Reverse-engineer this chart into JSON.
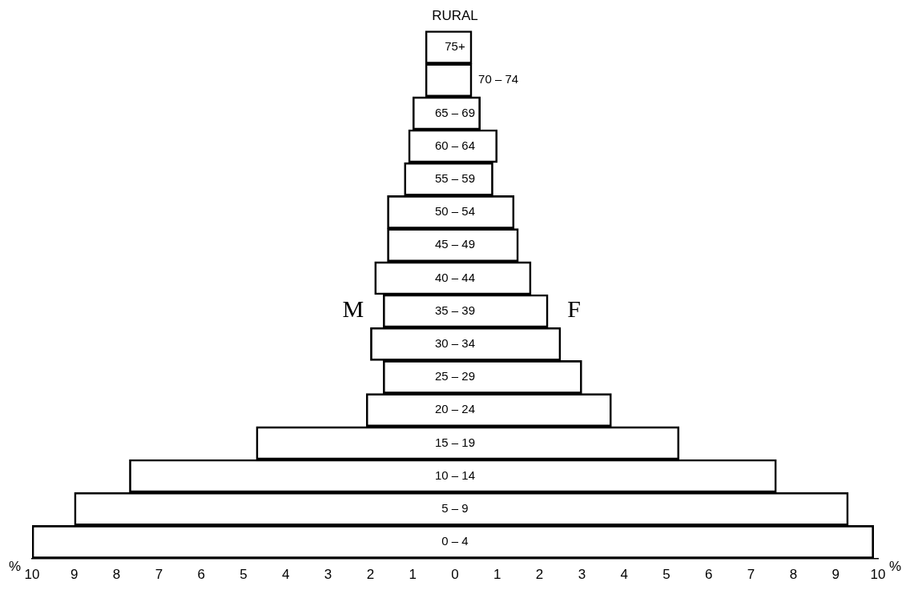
{
  "chart_data": {
    "type": "bar",
    "orientation": "horizontal",
    "stacked": true,
    "title": "RURAL",
    "xlabel": "%",
    "categories": [
      "75+",
      "70 – 74",
      "65 – 69",
      "60 – 64",
      "55 – 59",
      "50 – 54",
      "45 – 49",
      "40 – 44",
      "35 – 39",
      "30 – 34",
      "25 – 29",
      "20 – 24",
      "15 – 19",
      "10 – 14",
      "5 – 9",
      "0 – 4"
    ],
    "series": [
      {
        "name": "M",
        "color": "#000000",
        "values": [
          -0.7,
          -0.7,
          -1.0,
          -1.1,
          -1.2,
          -1.6,
          -1.6,
          -1.9,
          -1.7,
          -2.0,
          -1.7,
          -2.1,
          -4.7,
          -7.7,
          -9.0,
          -10.0
        ]
      },
      {
        "name": "F",
        "color": "#000000",
        "values": [
          0.4,
          0.4,
          0.6,
          1.0,
          0.9,
          1.4,
          1.5,
          1.8,
          2.2,
          2.5,
          3.0,
          3.7,
          5.3,
          7.6,
          9.3,
          9.9
        ]
      }
    ],
    "xlim": [
      -10,
      10
    ],
    "xticks": [
      {
        "value": -10,
        "label": "10"
      },
      {
        "value": -9,
        "label": "9"
      },
      {
        "value": -8,
        "label": "8"
      },
      {
        "value": -7,
        "label": "7"
      },
      {
        "value": -6,
        "label": "6"
      },
      {
        "value": -5,
        "label": "5"
      },
      {
        "value": -4,
        "label": "4"
      },
      {
        "value": -3,
        "label": "3"
      },
      {
        "value": -2,
        "label": "2"
      },
      {
        "value": -1,
        "label": "1"
      },
      0,
      1,
      2,
      3,
      4,
      5,
      6,
      7,
      8,
      9,
      10
    ],
    "grid": false
  }
}
